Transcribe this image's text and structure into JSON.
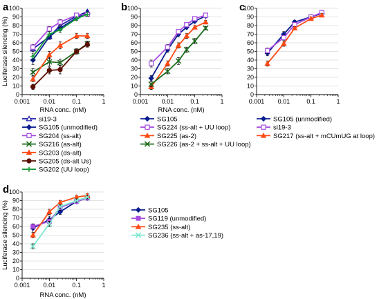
{
  "figure": {
    "ylabel": "Luciferase silencing (%)",
    "xlabel": "RNA conc. (nM)"
  },
  "chart_data": [
    {
      "type": "line",
      "panel": "a",
      "xscale": "log",
      "xlim": [
        0.001,
        1
      ],
      "ylim": [
        0,
        100
      ],
      "x_ticks": [
        "0.001",
        "0.01",
        "0.1",
        "1"
      ],
      "y_ticks": [
        "0",
        "10",
        "20",
        "30",
        "40",
        "50",
        "60",
        "70",
        "80",
        "90",
        "100"
      ],
      "xlabel": "RNA conc. (nM)",
      "ylabel": "Luciferase silencing (%)",
      "x": [
        0.0025,
        0.01,
        0.025,
        0.1,
        0.25
      ],
      "series": [
        {
          "name": "si19-3",
          "color": "#1a1aa8",
          "marker": "triangle-open",
          "values": [
            53,
            67,
            80,
            91,
            96
          ],
          "errors": [
            3,
            3,
            3,
            2,
            2
          ]
        },
        {
          "name": "SG105 (unmodified)",
          "color": "#0a1d8f",
          "marker": "diamond",
          "values": [
            40,
            67,
            77,
            89,
            95
          ],
          "errors": [
            5,
            3,
            3,
            2,
            2
          ]
        },
        {
          "name": "SG204 (ss-alt)",
          "color": "#a64de0",
          "marker": "square-open",
          "values": [
            55,
            76,
            84,
            92,
            93
          ],
          "errors": [
            3,
            3,
            3,
            2,
            2
          ]
        },
        {
          "name": "SG216 (as-alt)",
          "color": "#1f6e1f",
          "marker": "x",
          "values": [
            26,
            38,
            37,
            50,
            59
          ],
          "errors": [
            4,
            5,
            4,
            3,
            3
          ]
        },
        {
          "name": "SG203 (ds-alt)",
          "color": "#ff4a14",
          "marker": "triangle",
          "values": [
            18,
            46,
            57,
            68,
            68
          ],
          "errors": [
            3,
            4,
            4,
            3,
            3
          ]
        },
        {
          "name": "SG205 (ds-alt Us)",
          "color": "#5a0f00",
          "marker": "circle",
          "values": [
            9,
            28,
            29,
            50,
            58
          ],
          "errors": [
            3,
            4,
            5,
            3,
            3
          ]
        },
        {
          "name": "SG202 (UU loop)",
          "color": "#159a3a",
          "marker": "plus",
          "values": [
            44,
            70,
            75,
            88,
            93
          ],
          "errors": [
            4,
            3,
            3,
            2,
            2
          ]
        }
      ]
    },
    {
      "type": "line",
      "panel": "b",
      "xscale": "log",
      "xlim": [
        0.001,
        1
      ],
      "ylim": [
        0,
        100
      ],
      "x_ticks": [
        "0.001",
        "0.01",
        "0.1",
        "1"
      ],
      "y_ticks": [
        "0",
        "10",
        "20",
        "30",
        "40",
        "50",
        "60",
        "70",
        "80",
        "90",
        "100"
      ],
      "xlabel": "RNA conc. (nM)",
      "x": [
        0.0025,
        0.01,
        0.025,
        0.05,
        0.1,
        0.25
      ],
      "series": [
        {
          "name": "SG105",
          "color": "#0a1d8f",
          "marker": "diamond",
          "values": [
            19,
            52,
            70,
            78,
            85,
            91
          ],
          "errors": [
            3,
            3,
            3,
            2,
            2,
            2
          ]
        },
        {
          "name": "SG224 (ss-alt + UU loop)",
          "color": "#a64de0",
          "marker": "square-open",
          "values": [
            36,
            55,
            73,
            81,
            88,
            92
          ],
          "errors": [
            4,
            3,
            2,
            2,
            2,
            2
          ]
        },
        {
          "name": "SG225 (as-2)",
          "color": "#ff4a14",
          "marker": "triangle",
          "values": [
            9,
            36,
            57,
            68,
            78,
            84
          ],
          "errors": [
            3,
            3,
            3,
            3,
            2,
            2
          ]
        },
        {
          "name": "SG226 (as-2 + ss-alt + UU loop)",
          "color": "#1f6e1f",
          "marker": "x",
          "values": [
            12,
            27,
            39,
            52,
            62,
            77
          ],
          "errors": [
            3,
            3,
            4,
            3,
            3,
            2
          ]
        }
      ]
    },
    {
      "type": "line",
      "panel": "c",
      "xscale": "log",
      "xlim": [
        0.001,
        1
      ],
      "ylim": [
        0,
        100
      ],
      "x_ticks": [
        "0.001",
        "0.01",
        "0.1",
        "1"
      ],
      "y_ticks": [
        "0",
        "10",
        "20",
        "30",
        "40",
        "50",
        "60",
        "70",
        "80",
        "90",
        "100"
      ],
      "x": [
        0.0025,
        0.01,
        0.025,
        0.1,
        0.25
      ],
      "series": [
        {
          "name": "SG105 (unmodified)",
          "color": "#0a1d8f",
          "marker": "diamond",
          "values": [
            48,
            70,
            84,
            90,
            94
          ],
          "errors": [
            3,
            3,
            2,
            2,
            2
          ]
        },
        {
          "name": "si19-3",
          "color": "#a64de0",
          "marker": "square-open",
          "values": [
            51,
            66,
            81,
            90,
            95
          ],
          "errors": [
            3,
            3,
            2,
            2,
            2
          ]
        },
        {
          "name": "SG217 (ss-alt + mCUmUG at loop)",
          "color": "#ff4a14",
          "marker": "triangle",
          "values": [
            36,
            59,
            77,
            88,
            92
          ],
          "errors": [
            3,
            3,
            2,
            2,
            2
          ]
        }
      ]
    },
    {
      "type": "line",
      "panel": "d",
      "xscale": "log",
      "xlim": [
        0.001,
        1
      ],
      "ylim": [
        0,
        100
      ],
      "x_ticks": [
        "0.001",
        "0.01",
        "0.1",
        "1"
      ],
      "y_ticks": [
        "0",
        "10",
        "20",
        "30",
        "40",
        "50",
        "60",
        "70",
        "80",
        "90",
        "100"
      ],
      "xlabel": "RNA conc. (nM)",
      "ylabel": "Luciferase silencing (%)",
      "x": [
        0.0025,
        0.01,
        0.025,
        0.1,
        0.25
      ],
      "series": [
        {
          "name": "SG105",
          "color": "#0a1d8f",
          "marker": "diamond",
          "values": [
            58,
            68,
            77,
            89,
            93
          ],
          "errors": [
            5,
            4,
            3,
            2,
            2
          ]
        },
        {
          "name": "SG119 (unmodified)",
          "color": "#a64de0",
          "marker": "square",
          "values": [
            60,
            66,
            82,
            89,
            93
          ],
          "errors": [
            3,
            3,
            3,
            2,
            2
          ]
        },
        {
          "name": "SG235 (ss-alt)",
          "color": "#ff4a14",
          "marker": "triangle",
          "values": [
            50,
            77,
            88,
            94,
            96
          ],
          "errors": [
            3,
            3,
            2,
            2,
            2
          ]
        },
        {
          "name": "SG236 (ss-alt + as-17,19)",
          "color": "#7fe8cf",
          "marker": "x",
          "values": [
            37,
            63,
            83,
            90,
            94
          ],
          "errors": [
            3,
            3,
            2,
            2,
            2
          ]
        }
      ]
    }
  ]
}
